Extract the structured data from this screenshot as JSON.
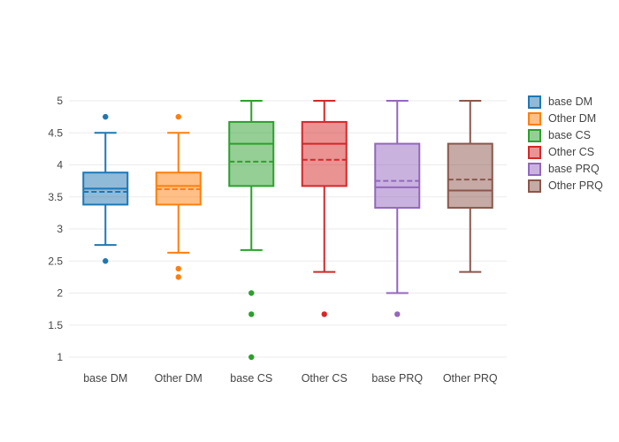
{
  "chart_data": {
    "type": "box",
    "title": "",
    "xlabel": "",
    "ylabel": "",
    "grid": true,
    "legend_position": "right",
    "categories": [
      "base DM",
      "Other DM",
      "base CS",
      "Other CS",
      "base PRQ",
      "Other PRQ"
    ],
    "yaxis": {
      "ticks": [
        1,
        1.5,
        2,
        2.5,
        3,
        3.5,
        4,
        4.5,
        5
      ],
      "tick_labels": [
        "1",
        "1.5",
        "2",
        "2.5",
        "3",
        "3.5",
        "4",
        "4.5",
        "5"
      ],
      "range": [
        0.8,
        5.35
      ]
    },
    "series": [
      {
        "name": "base DM",
        "color": "#1f77b4",
        "whisker_low": 2.75,
        "q1": 3.38,
        "median": 3.63,
        "mean": 3.58,
        "q3": 3.88,
        "whisker_high": 4.5,
        "outliers": [
          4.75,
          2.5
        ]
      },
      {
        "name": "Other DM",
        "color": "#ff7f0e",
        "whisker_low": 2.63,
        "q1": 3.38,
        "median": 3.67,
        "mean": 3.62,
        "q3": 3.88,
        "whisker_high": 4.5,
        "outliers": [
          4.75,
          2.38,
          2.25
        ]
      },
      {
        "name": "base CS",
        "color": "#2ca02c",
        "whisker_low": 2.67,
        "q1": 3.67,
        "median": 4.33,
        "mean": 4.05,
        "q3": 4.67,
        "whisker_high": 5,
        "outliers": [
          2.0,
          1.67,
          1.0
        ]
      },
      {
        "name": "Other CS",
        "color": "#d62728",
        "whisker_low": 2.33,
        "q1": 3.67,
        "median": 4.33,
        "mean": 4.08,
        "q3": 4.67,
        "whisker_high": 5,
        "outliers": [
          1.67
        ]
      },
      {
        "name": "base PRQ",
        "color": "#9467bd",
        "whisker_low": 2.0,
        "q1": 3.33,
        "median": 3.65,
        "mean": 3.75,
        "q3": 4.33,
        "whisker_high": 5,
        "outliers": [
          1.67
        ]
      },
      {
        "name": "Other PRQ",
        "color": "#8c564b",
        "whisker_low": 2.33,
        "q1": 3.33,
        "median": 3.6,
        "mean": 3.77,
        "q3": 4.33,
        "whisker_high": 5,
        "outliers": []
      }
    ],
    "style": {
      "gridline_color": "#ebebeb",
      "tick_label_color": "#444444",
      "background": "#ffffff",
      "fill_opacity": 0.5
    }
  }
}
